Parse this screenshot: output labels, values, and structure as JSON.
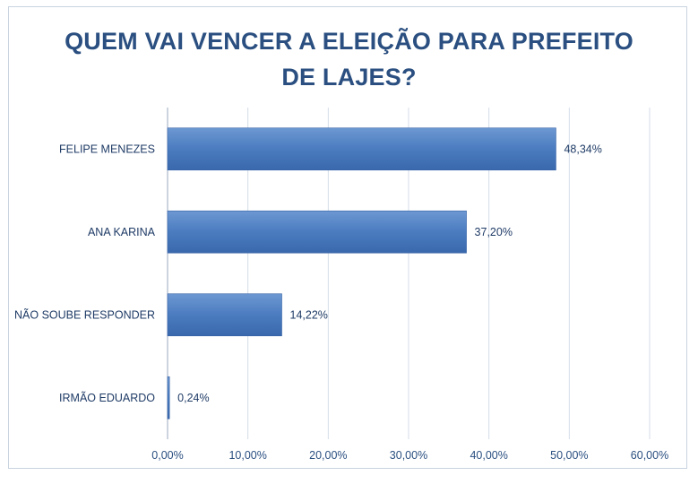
{
  "chart_data": {
    "type": "bar",
    "orientation": "horizontal",
    "title_line1": "QUEM VAI VENCER A ELEIÇÃO PARA PREFEITO",
    "title_line2": "DE LAJES?",
    "categories": [
      "FELIPE MENEZES",
      "ANA KARINA",
      "NÃO SOUBE RESPONDER",
      "IRMÃO EDUARDO"
    ],
    "values": [
      48.34,
      37.2,
      14.22,
      0.24
    ],
    "value_labels": [
      "48,34%",
      "37,20%",
      "14,22%",
      "0,24%"
    ],
    "xlim": [
      0,
      60
    ],
    "xticks": [
      0,
      10,
      20,
      30,
      40,
      50,
      60
    ],
    "xtick_labels": [
      "0,00%",
      "10,00%",
      "20,00%",
      "30,00%",
      "40,00%",
      "50,00%",
      "60,00%"
    ],
    "grid": true,
    "legend": "none",
    "colors": {
      "bar": "#4b7cc0",
      "bar_dark": "#3562a6",
      "grid": "#d4dde9",
      "title": "#2a4f80"
    }
  }
}
